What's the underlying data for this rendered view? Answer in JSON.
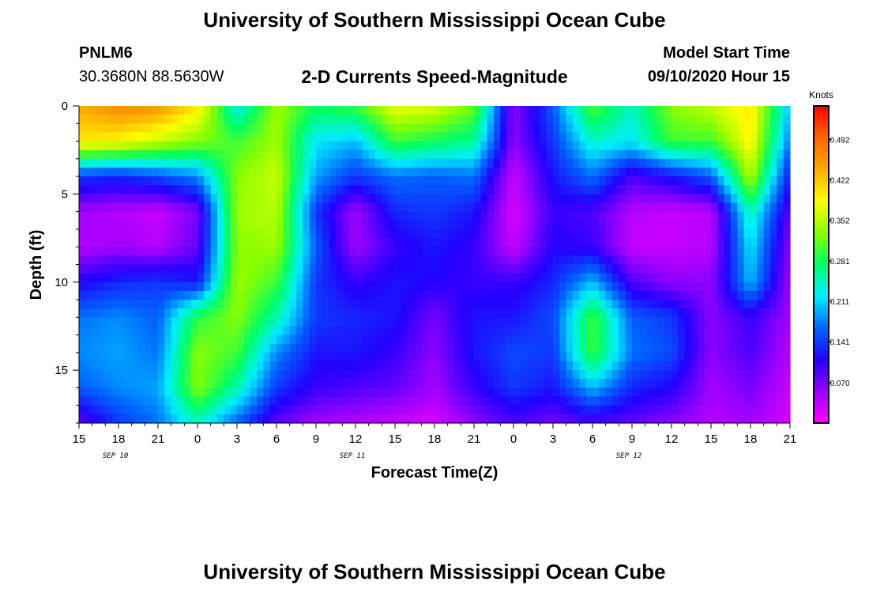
{
  "header": {
    "title": "University of Southern Mississippi Ocean Cube",
    "station_id": "PNLM6",
    "station_coords": "30.3680N 88.5630W",
    "chart_title": "2-D Currents Speed-Magnitude",
    "model_label": "Model Start Time",
    "model_time": "09/10/2020 Hour 15"
  },
  "footer": {
    "title": "University of Southern Mississippi Ocean Cube"
  },
  "chart_data": {
    "type": "heatmap",
    "title": "2-D Currents Speed-Magnitude",
    "xlabel": "Forecast Time(Z)",
    "ylabel": "Depth (ft)",
    "x_tick_labels": [
      "15",
      "18",
      "21",
      "0",
      "3",
      "6",
      "9",
      "12",
      "15",
      "18",
      "21",
      "0",
      "3",
      "6",
      "9",
      "12",
      "15",
      "18",
      "21"
    ],
    "x_date_labels": [
      {
        "label": "SEP 10",
        "tick_index": 1
      },
      {
        "label": "SEP 11",
        "tick_index": 7
      },
      {
        "label": "SEP 12",
        "tick_index": 14
      }
    ],
    "x_range_hours": [
      0,
      54
    ],
    "y_tick_labels": [
      "0",
      "5",
      "10",
      "15"
    ],
    "y_tick_values": [
      0,
      5,
      10,
      15
    ],
    "y_range_ft": [
      0,
      18
    ],
    "colorbar": {
      "unit": "Knots",
      "tick_labels": [
        "0.492",
        "0.422",
        "0.352",
        "0.281",
        "0.211",
        "0.141",
        "0.070"
      ],
      "tick_values": [
        0.492,
        0.422,
        0.352,
        0.281,
        0.211,
        0.141,
        0.07
      ],
      "range": [
        0.0,
        0.55
      ],
      "colors": [
        "#ff00ff",
        "#9900ff",
        "#2200ff",
        "#0066ff",
        "#00eeff",
        "#00ff66",
        "#88ff00",
        "#ffff00",
        "#ffaa00",
        "#ff6600",
        "#ff0000"
      ]
    },
    "grid": false,
    "speed_grid_note": "Rows: depth bins from 0 to 18 ft (every 2 ft). Columns: forecast hours 0..54 every 3 h (Sep 10 15Z to Sep 12 21Z). Values in knots.",
    "depths_ft": [
      0,
      2,
      4,
      6,
      8,
      10,
      12,
      14,
      16,
      18
    ],
    "hours": [
      0,
      3,
      6,
      9,
      12,
      15,
      18,
      21,
      24,
      27,
      30,
      33,
      36,
      39,
      42,
      45,
      48,
      51,
      54
    ],
    "values": [
      [
        0.44,
        0.47,
        0.46,
        0.4,
        0.22,
        0.34,
        0.28,
        0.3,
        0.38,
        0.37,
        0.32,
        0.06,
        0.16,
        0.31,
        0.24,
        0.33,
        0.36,
        0.4,
        0.2
      ],
      [
        0.4,
        0.39,
        0.36,
        0.33,
        0.3,
        0.34,
        0.22,
        0.2,
        0.3,
        0.28,
        0.26,
        0.06,
        0.14,
        0.24,
        0.22,
        0.3,
        0.3,
        0.39,
        0.17
      ],
      [
        0.14,
        0.13,
        0.15,
        0.18,
        0.33,
        0.36,
        0.19,
        0.14,
        0.17,
        0.16,
        0.17,
        0.03,
        0.12,
        0.17,
        0.09,
        0.12,
        0.16,
        0.35,
        0.12
      ],
      [
        0.05,
        0.04,
        0.03,
        0.07,
        0.34,
        0.35,
        0.14,
        0.05,
        0.13,
        0.14,
        0.12,
        0.02,
        0.1,
        0.09,
        0.04,
        0.03,
        0.04,
        0.25,
        0.08
      ],
      [
        0.04,
        0.05,
        0.04,
        0.08,
        0.33,
        0.34,
        0.16,
        0.05,
        0.1,
        0.12,
        0.1,
        0.03,
        0.11,
        0.1,
        0.03,
        0.03,
        0.04,
        0.22,
        0.06
      ],
      [
        0.11,
        0.13,
        0.14,
        0.12,
        0.34,
        0.3,
        0.14,
        0.1,
        0.12,
        0.11,
        0.1,
        0.1,
        0.13,
        0.2,
        0.09,
        0.06,
        0.06,
        0.2,
        0.05
      ],
      [
        0.17,
        0.18,
        0.16,
        0.29,
        0.33,
        0.25,
        0.14,
        0.13,
        0.12,
        0.07,
        0.12,
        0.12,
        0.15,
        0.3,
        0.16,
        0.14,
        0.06,
        0.1,
        0.05
      ],
      [
        0.18,
        0.19,
        0.17,
        0.33,
        0.3,
        0.18,
        0.12,
        0.12,
        0.1,
        0.06,
        0.12,
        0.15,
        0.14,
        0.3,
        0.17,
        0.15,
        0.06,
        0.09,
        0.04
      ],
      [
        0.16,
        0.18,
        0.19,
        0.33,
        0.25,
        0.14,
        0.1,
        0.09,
        0.08,
        0.05,
        0.1,
        0.14,
        0.12,
        0.2,
        0.13,
        0.11,
        0.05,
        0.07,
        0.03
      ],
      [
        0.08,
        0.14,
        0.17,
        0.24,
        0.16,
        0.08,
        0.05,
        0.04,
        0.03,
        0.02,
        0.06,
        0.09,
        0.07,
        0.09,
        0.08,
        0.06,
        0.04,
        0.05,
        0.02
      ]
    ]
  }
}
